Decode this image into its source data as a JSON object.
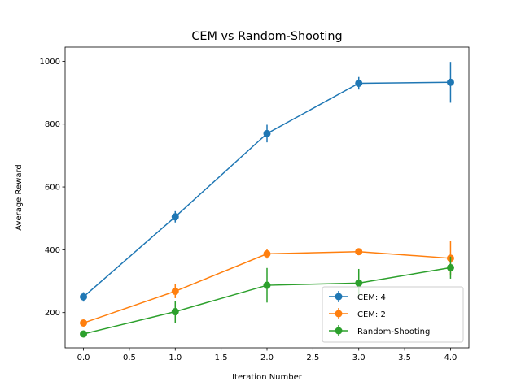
{
  "chart_data": {
    "type": "line",
    "title": "CEM vs Random-Shooting",
    "xlabel": "Iteration Number",
    "ylabel": "Average Reward",
    "xlim": [
      -0.2,
      4.2
    ],
    "ylim": [
      88,
      1045
    ],
    "xticks": [
      0.0,
      0.5,
      1.0,
      1.5,
      2.0,
      2.5,
      3.0,
      3.5,
      4.0
    ],
    "xtick_labels": [
      "0.0",
      "0.5",
      "1.0",
      "1.5",
      "2.0",
      "2.5",
      "3.0",
      "3.5",
      "4.0"
    ],
    "yticks": [
      200,
      400,
      600,
      800,
      1000
    ],
    "ytick_labels": [
      "200",
      "400",
      "600",
      "800",
      "1000"
    ],
    "grid": false,
    "legend_position": "lower-right",
    "series": [
      {
        "name": "CEM: 4",
        "color": "#1f77b4",
        "x": [
          0,
          1,
          2,
          3,
          4
        ],
        "y": [
          250,
          505,
          770,
          930,
          933
        ],
        "yerr": [
          15,
          18,
          28,
          20,
          65
        ]
      },
      {
        "name": "CEM: 2",
        "color": "#ff7f0e",
        "x": [
          0,
          1,
          2,
          3,
          4
        ],
        "y": [
          167,
          268,
          387,
          394,
          373
        ],
        "yerr": [
          8,
          22,
          15,
          8,
          55
        ]
      },
      {
        "name": "Random-Shooting",
        "color": "#2ca02c",
        "x": [
          0,
          1,
          2,
          3,
          4
        ],
        "y": [
          132,
          203,
          287,
          294,
          343
        ],
        "yerr": [
          6,
          35,
          55,
          45,
          35
        ]
      }
    ]
  }
}
